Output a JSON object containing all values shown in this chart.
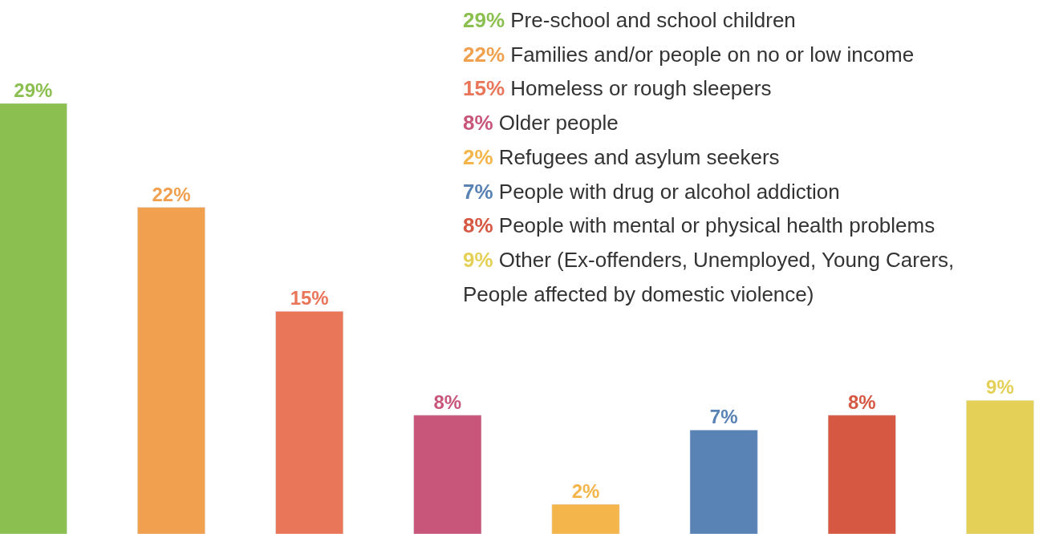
{
  "chart_data": {
    "type": "bar",
    "categories": [
      null,
      null,
      null,
      null,
      null,
      null,
      null,
      null
    ],
    "values": [
      29,
      22,
      15,
      8,
      2,
      7,
      8,
      9
    ],
    "colors": [
      "#8bbf4f",
      "#f0a04f",
      "#ea765a",
      "#c7567a",
      "#f4b54a",
      "#5982b5",
      "#d65742",
      "#e5d057"
    ],
    "value_labels": [
      "29%",
      "22%",
      "15%",
      "8%",
      "2%",
      "7%",
      "8%",
      "9%"
    ],
    "annotations": [
      "29% Pre-school and school children",
      "22% Families and/or people on no or low income",
      "15% Homeless or rough sleepers",
      "8% Older people",
      "2% Refugees and asylum seekers",
      "7% People with drug or alcohol addiction",
      "8% People with mental or physical health problems",
      "9% Other (Ex-offenders, Unemployed, Young Carers, People affected by domestic violence)"
    ]
  }
}
